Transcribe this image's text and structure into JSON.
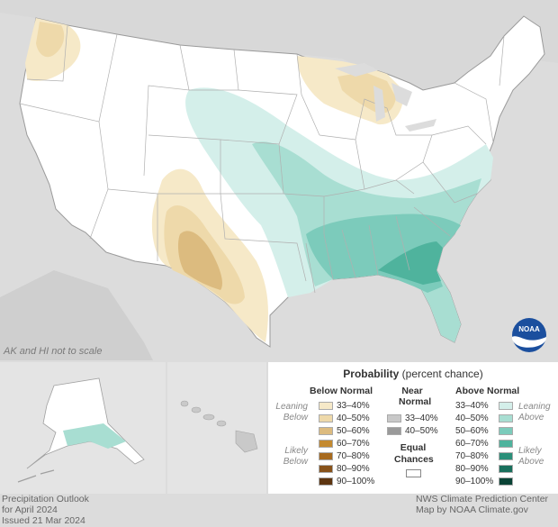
{
  "map": {
    "scale_note": "AK and HI not to scale",
    "footer_left": [
      "Precipitation Outlook",
      "for April 2024",
      "Issued 21 Mar 2024"
    ],
    "footer_right": [
      "NWS Climate Prediction Center",
      "Map by NOAA Climate.gov"
    ],
    "logo_text": "NOAA",
    "colors": {
      "below_33_40": "#f6e9c8",
      "below_40_50": "#eed9aa",
      "below_50_60": "#dcbb7f",
      "below_60_70": "#c48a30",
      "below_70_80": "#a76a1e",
      "below_80_90": "#87521a",
      "below_90_100": "#5d3510",
      "above_33_40": "#d4efea",
      "above_40_50": "#a8ded2",
      "above_50_60": "#7ccbbb",
      "above_60_70": "#4fb39d",
      "above_70_80": "#2b8f79",
      "above_80_90": "#196f5c",
      "above_90_100": "#0a4336",
      "near_33_40": "#c8c8c8",
      "near_40_50": "#9a9a9a",
      "equal_chances": "#ffffff"
    }
  },
  "legend": {
    "title_bold": "Probability",
    "title_rest": " (percent chance)",
    "below_header": "Below Normal",
    "near_header": [
      "Near",
      "Normal"
    ],
    "above_header": "Above Normal",
    "leaning_below": [
      "Leaning",
      "Below"
    ],
    "likely_below": [
      "Likely",
      "Below"
    ],
    "leaning_above": [
      "Leaning",
      "Above"
    ],
    "likely_above": [
      "Likely",
      "Above"
    ],
    "below_bins": [
      "33–40%",
      "40–50%",
      "50–60%",
      "60–70%",
      "70–80%",
      "80–90%",
      "90–100%"
    ],
    "near_bins": [
      "33–40%",
      "40–50%"
    ],
    "above_bins": [
      "33–40%",
      "40–50%",
      "50–60%",
      "60–70%",
      "70–80%",
      "80–90%",
      "90–100%"
    ],
    "equal_chances": [
      "Equal",
      "Chances"
    ]
  }
}
